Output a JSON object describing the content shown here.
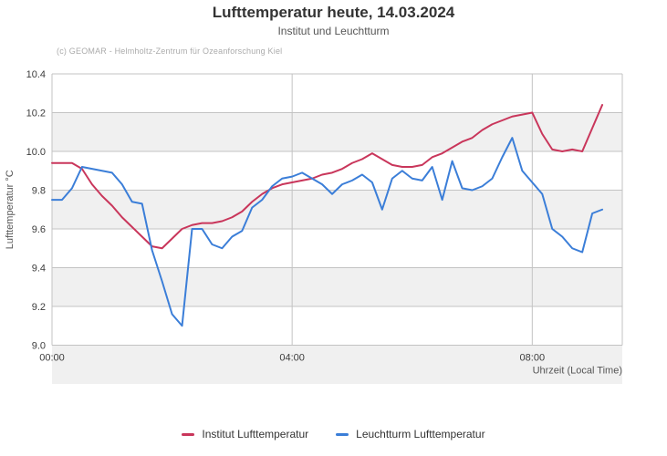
{
  "title": "Lufttemperatur heute, 14.03.2024",
  "subtitle": "Institut und Leuchtturm",
  "credits": "(c) GEOMAR - Helmholtz-Zentrum für Ozeanforschung Kiel",
  "chart_data": {
    "type": "line",
    "title": "Lufttemperatur heute, 14.03.2024",
    "subtitle": "Institut und Leuchtturm",
    "xlabel": "Uhrzeit (Local Time)",
    "ylabel": "Lufttemperatur °C",
    "ylim": [
      9.0,
      10.4
    ],
    "ytick_step": 0.2,
    "xlim_hours": [
      0,
      9.5
    ],
    "xticks": [
      {
        "hours": 0,
        "label": "00:00"
      },
      {
        "hours": 4,
        "label": "04:00"
      },
      {
        "hours": 8,
        "label": "08:00"
      }
    ],
    "grid": true,
    "legend_position": "bottom",
    "alternate_band_color": "#f0f0f0",
    "gridline_color": "#c3c3c3",
    "x_step_minutes": 10,
    "times": [
      "00:00",
      "00:10",
      "00:20",
      "00:30",
      "00:40",
      "00:50",
      "01:00",
      "01:10",
      "01:20",
      "01:30",
      "01:40",
      "01:50",
      "02:00",
      "02:10",
      "02:20",
      "02:30",
      "02:40",
      "02:50",
      "03:00",
      "03:10",
      "03:20",
      "03:30",
      "03:40",
      "03:50",
      "04:00",
      "04:10",
      "04:20",
      "04:30",
      "04:40",
      "04:50",
      "05:00",
      "05:10",
      "05:20",
      "05:30",
      "05:40",
      "05:50",
      "06:00",
      "06:10",
      "06:20",
      "06:30",
      "06:40",
      "06:50",
      "07:00",
      "07:10",
      "07:20",
      "07:30",
      "07:40",
      "07:50",
      "08:00",
      "08:10",
      "08:20",
      "08:30",
      "08:40",
      "08:50",
      "09:00",
      "09:10"
    ],
    "series": [
      {
        "name": "Institut Lufttemperatur",
        "color": "#c9365b",
        "values": [
          9.94,
          9.94,
          9.94,
          9.91,
          9.83,
          9.77,
          9.72,
          9.66,
          9.61,
          9.56,
          9.51,
          9.5,
          9.55,
          9.6,
          9.62,
          9.63,
          9.63,
          9.64,
          9.66,
          9.69,
          9.74,
          9.78,
          9.81,
          9.83,
          9.84,
          9.85,
          9.86,
          9.88,
          9.89,
          9.91,
          9.94,
          9.96,
          9.99,
          9.96,
          9.93,
          9.92,
          9.92,
          9.93,
          9.97,
          9.99,
          10.02,
          10.05,
          10.07,
          10.11,
          10.14,
          10.16,
          10.18,
          10.19,
          10.2,
          10.09,
          10.01,
          10.0,
          10.01,
          10.0,
          10.12,
          10.24
        ]
      },
      {
        "name": "Leuchtturm Lufttemperatur",
        "color": "#3b7ed8",
        "values": [
          9.75,
          9.75,
          9.81,
          9.92,
          9.91,
          9.9,
          9.89,
          9.83,
          9.74,
          9.73,
          9.49,
          9.33,
          9.16,
          9.1,
          9.6,
          9.6,
          9.52,
          9.5,
          9.56,
          9.59,
          9.71,
          9.75,
          9.82,
          9.86,
          9.87,
          9.89,
          9.86,
          9.83,
          9.78,
          9.83,
          9.85,
          9.88,
          9.84,
          9.7,
          9.86,
          9.9,
          9.86,
          9.85,
          9.92,
          9.75,
          9.95,
          9.81,
          9.8,
          9.82,
          9.86,
          9.97,
          10.07,
          9.9,
          9.84,
          9.78,
          9.6,
          9.56,
          9.5,
          9.48,
          9.68,
          9.7
        ]
      }
    ]
  }
}
